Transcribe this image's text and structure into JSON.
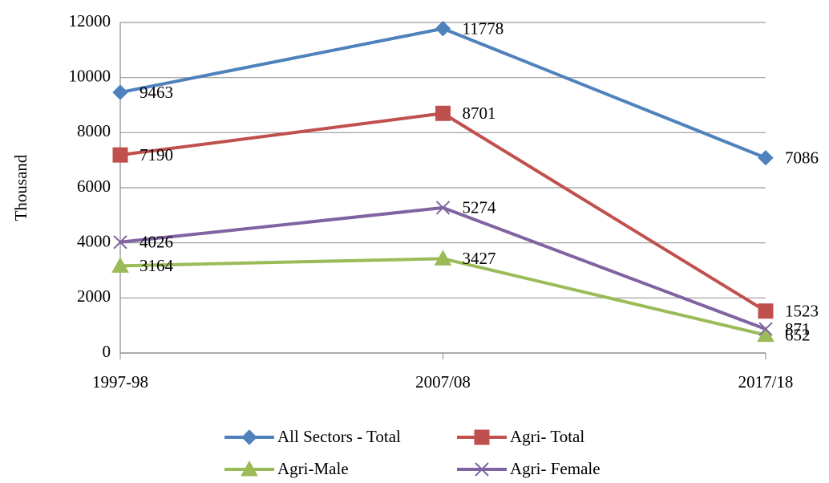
{
  "chart_data": {
    "type": "line",
    "y_label": "Thousand",
    "categories": [
      "1997-98",
      "2007/08",
      "2017/18"
    ],
    "series": [
      {
        "name": "All Sectors - Total",
        "color": "#4F81BD",
        "marker": "diamond",
        "values": [
          9463,
          11778,
          7086
        ]
      },
      {
        "name": "Agri- Total",
        "color": "#C0504D",
        "marker": "square",
        "values": [
          7190,
          8701,
          1523
        ]
      },
      {
        "name": "Agri-Male",
        "color": "#9BBB59",
        "marker": "triangle",
        "values": [
          3164,
          3427,
          652
        ]
      },
      {
        "name": "Agri- Female",
        "color": "#8064A2",
        "marker": "x",
        "values": [
          4026,
          5274,
          871
        ]
      }
    ],
    "ylim": [
      0,
      12000
    ],
    "yticks": [
      0,
      2000,
      4000,
      6000,
      8000,
      10000,
      12000
    ],
    "grid": true,
    "legend": "bottom"
  }
}
